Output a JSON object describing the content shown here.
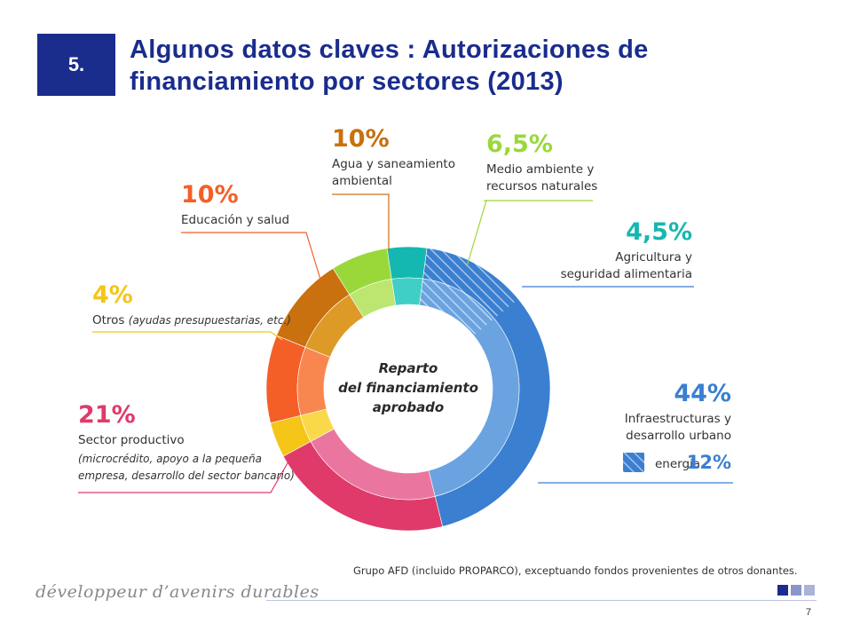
{
  "slide": {
    "number": "5.",
    "title": "Algunos datos claves : Autorizaciones de financiamiento por sectores (2013)",
    "footnote": "Grupo AFD (incluido PROPARCO), exceptuando fondos provenientes de otros donantes.",
    "tagline": "développeur d’avenirs durables",
    "page_number": "7",
    "colors": {
      "brand": "#1a2c8c",
      "square_light": "#8a96c9",
      "square_lighter": "#aab3d9"
    }
  },
  "chart_data": {
    "type": "pie",
    "center_label": [
      "Reparto",
      "del financiamiento",
      "aprobado"
    ],
    "slices": [
      {
        "key": "infra",
        "percent_label": "44%",
        "value": 44,
        "label": [
          "Infraestructuras y",
          "desarrollo urbano"
        ],
        "color": "#3a7fd0",
        "inner_color": "#6aa3e0",
        "sub": {
          "label": "energía",
          "percent_label": "12%",
          "value": 12
        }
      },
      {
        "key": "sector",
        "percent_label": "21%",
        "value": 21,
        "label": [
          "Sector productivo"
        ],
        "sublabel": [
          "(microcrédito, apoyo a la pequeña",
          "empresa, desarrollo del sector bancario)"
        ],
        "color": "#df3a6a",
        "inner_color": "#ea76a0"
      },
      {
        "key": "otros",
        "percent_label": "4%",
        "value": 4,
        "label": [
          "Otros"
        ],
        "sublabel": [
          "(ayudas presupuestarias, etc.)"
        ],
        "color": "#f5c518",
        "inner_color": "#f9d94a"
      },
      {
        "key": "educacion",
        "percent_label": "10%",
        "value": 10,
        "label": [
          "Educación y salud"
        ],
        "color": "#f45f28",
        "inner_color": "#f8874f"
      },
      {
        "key": "agua",
        "percent_label": "10%",
        "value": 10,
        "label": [
          "Agua y saneamiento",
          "ambiental"
        ],
        "color": "#c9700f",
        "inner_color": "#dd9a26"
      },
      {
        "key": "medio",
        "percent_label": "6,5%",
        "value": 6.5,
        "label": [
          "Medio ambiente y",
          "recursos naturales"
        ],
        "color": "#9ad83a",
        "inner_color": "#bce670"
      },
      {
        "key": "agri",
        "percent_label": "4,5%",
        "value": 4.5,
        "label": [
          "Agricultura y",
          "seguridad alimentaria"
        ],
        "color": "#14b8b0",
        "inner_color": "#3fcfc6"
      }
    ]
  }
}
